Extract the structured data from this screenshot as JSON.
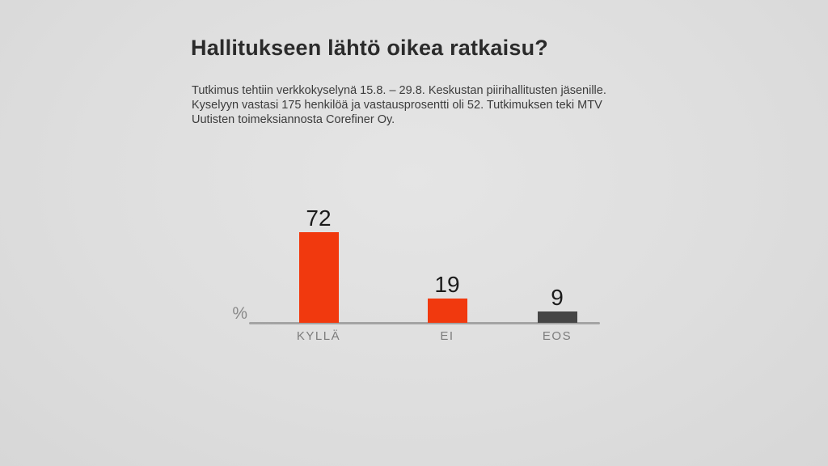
{
  "slide": {
    "title": "Hallitukseen lähtö oikea ratkaisu?",
    "subtitle_lines": [
      "Tutkimus tehtiin verkkokyselynä 15.8. – 29.8. Keskustan piirihallitusten jäsenille.",
      "Kyselyyn vastasi 175 henkilöä ja vastausprosentti oli 52. Tutkimuksen teki MTV",
      "Uutisten toimeksiannosta Corefiner Oy."
    ]
  },
  "chart_data": {
    "type": "bar",
    "title": "Hallitukseen lähtö oikea ratkaisu?",
    "categories": [
      "KYLLÄ",
      "EI",
      "EOS"
    ],
    "values": [
      72,
      19,
      9
    ],
    "xlabel": "",
    "ylabel": "%",
    "ylim": [
      0,
      80
    ],
    "grid": false,
    "legend": "none",
    "value_labels_shown": true,
    "bar_colors": [
      "#f1390e",
      "#f1390e",
      "#454545"
    ],
    "axis_line_color": "#a4a4a4",
    "value_label_color": "#1b1b1b",
    "category_label_color": "#7c7c7c"
  }
}
